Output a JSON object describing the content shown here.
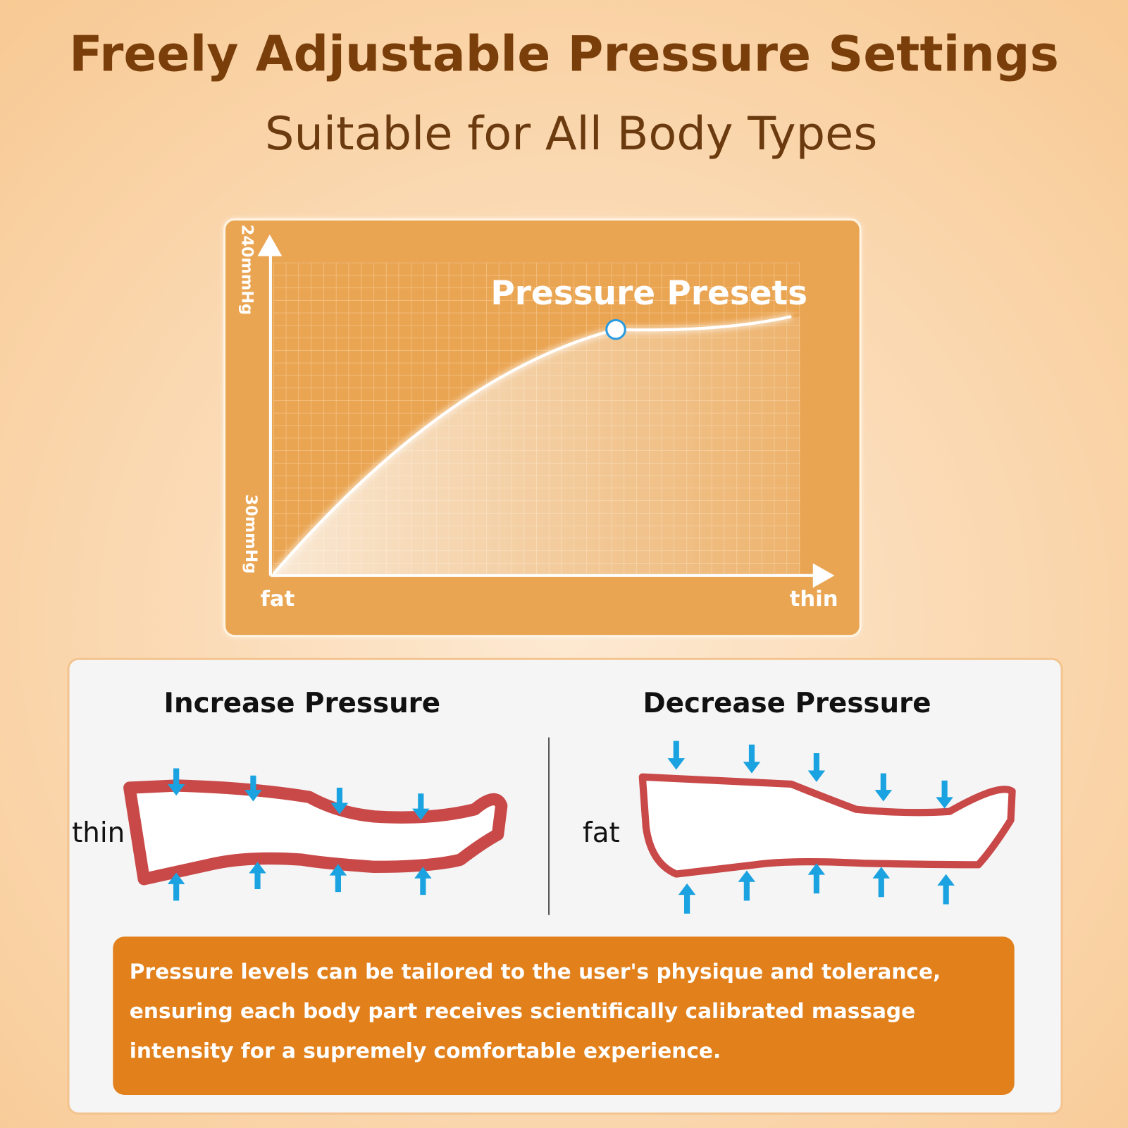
{
  "header": {
    "title": "Freely Adjustable Pressure Settings",
    "subtitle": "Suitable for All Body Types"
  },
  "graph": {
    "y_top_label": "240mmHg",
    "y_bottom_label": "30mmHg",
    "x_left_label": "fat",
    "x_right_label": "thin",
    "annotation": "Pressure Presets"
  },
  "panels": [
    {
      "title": "Increase Pressure",
      "label": "thin"
    },
    {
      "title": "Decrease Pressure",
      "label": "fat"
    }
  ],
  "description": [
    "Pressure levels can be tailored to the user's physique and tolerance,",
    "ensuring each body part receives scientifically calibrated massage",
    "intensity for a supremely comfortable experience."
  ]
}
